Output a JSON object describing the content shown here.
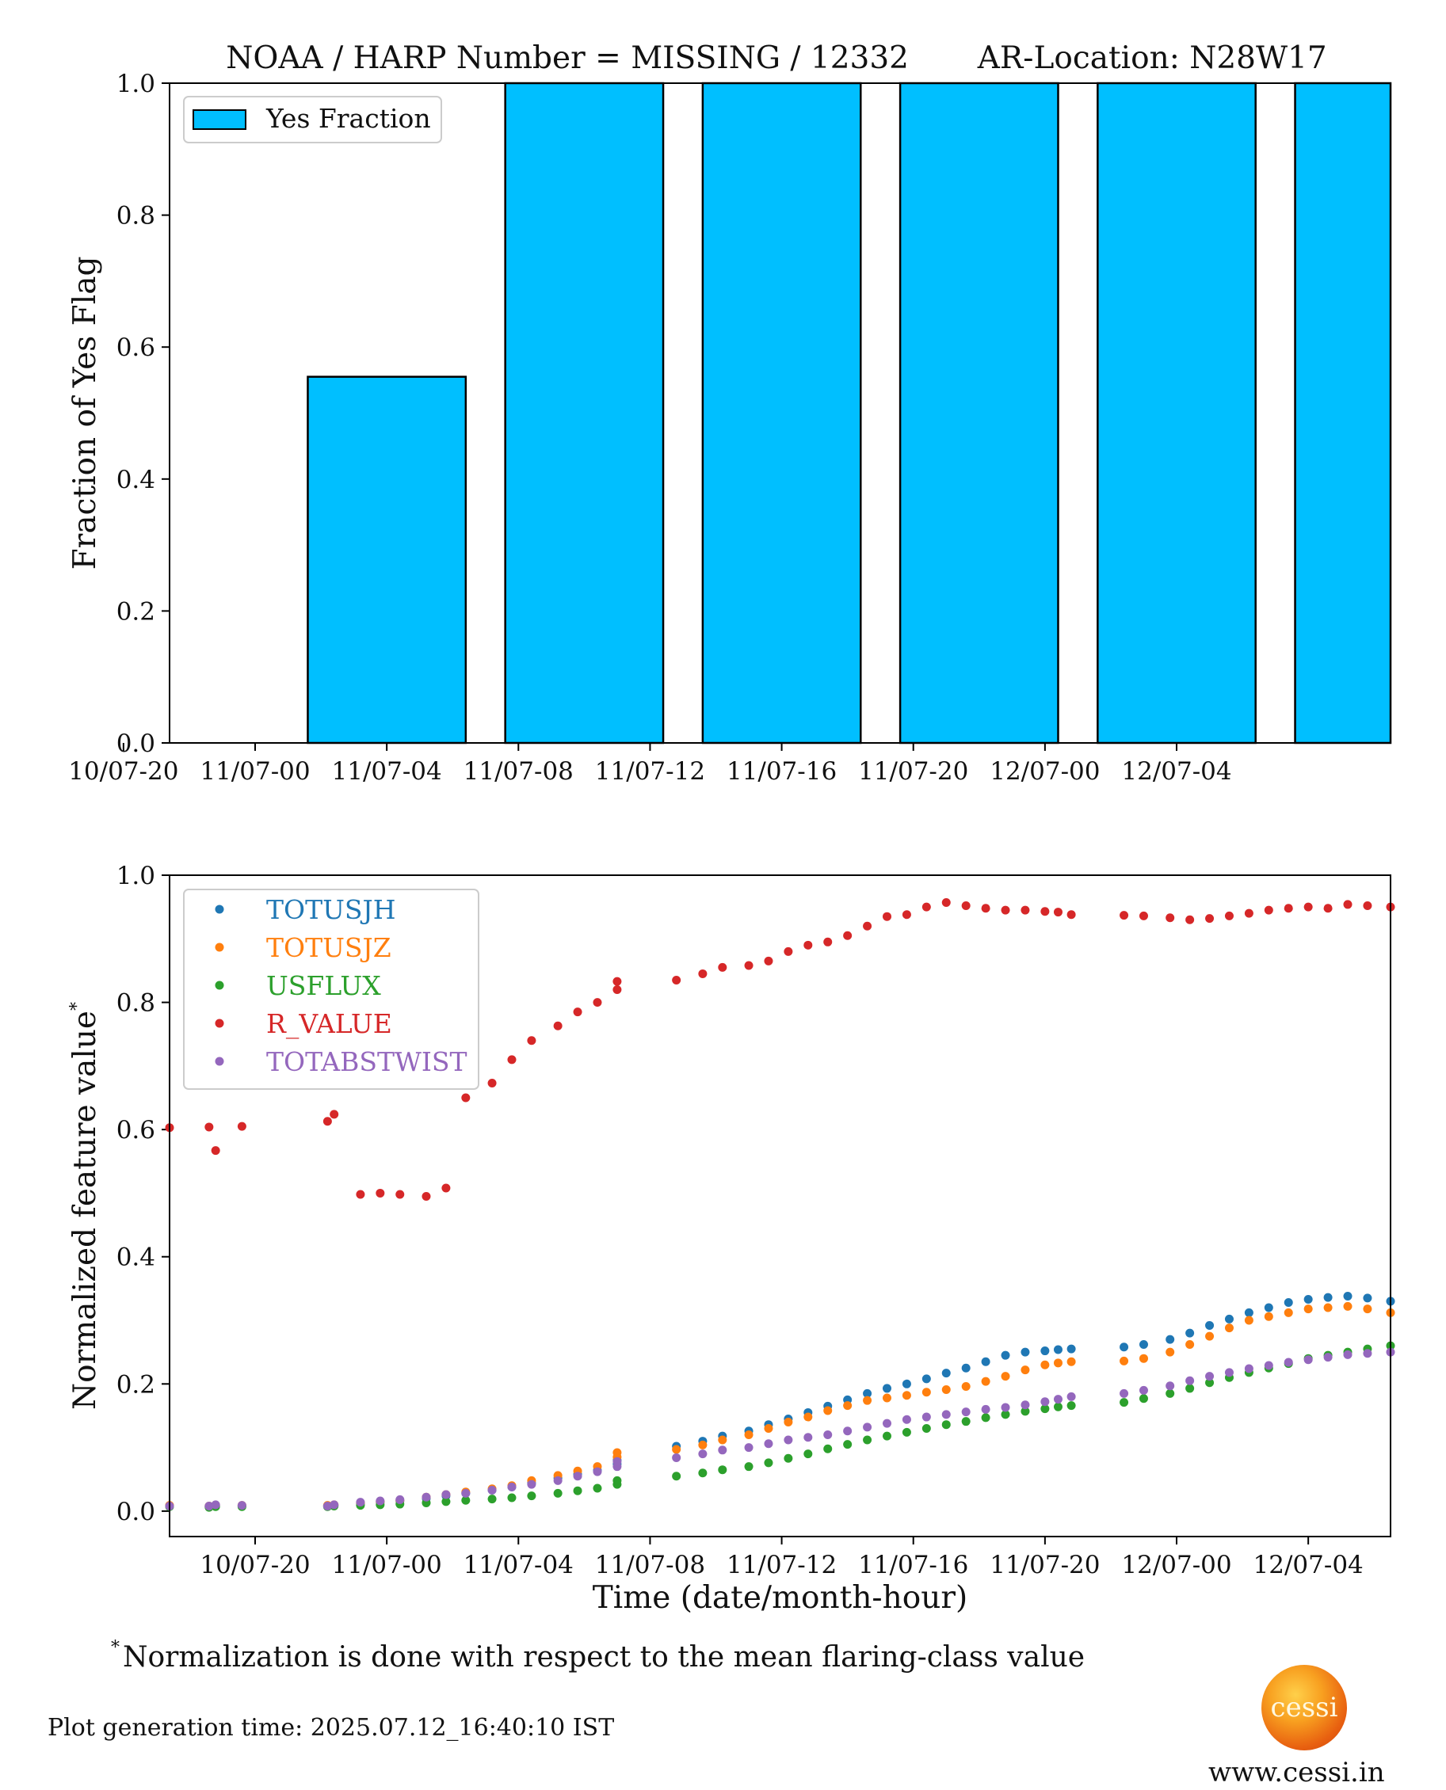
{
  "chart_data": [
    {
      "type": "bar",
      "title": "NOAA / HARP Number = MISSING / 12332       AR-Location: N28W17",
      "xlabel": "",
      "ylabel": "Fraction of Yes Flag",
      "ylim": [
        0,
        1.0
      ],
      "yticks": [
        "0.0",
        "0.2",
        "0.4",
        "0.6",
        "0.8",
        "1.0"
      ],
      "xticks": [
        "10/07-20",
        "11/07-00",
        "11/07-04",
        "11/07-08",
        "11/07-12",
        "11/07-16",
        "11/07-20",
        "12/07-00",
        "12/07-04"
      ],
      "x_range_hours": [
        -2.6,
        34.5
      ],
      "legend": {
        "placement": "top-left",
        "entries": [
          "Yes Fraction"
        ]
      },
      "bar_color": "#00bfff",
      "bars": [
        {
          "start_hour": 1.6,
          "end_hour": 6.4,
          "value": 0.555
        },
        {
          "start_hour": 7.6,
          "end_hour": 12.4,
          "value": 1.0
        },
        {
          "start_hour": 13.6,
          "end_hour": 18.4,
          "value": 1.0
        },
        {
          "start_hour": 19.6,
          "end_hour": 24.4,
          "value": 1.0
        },
        {
          "start_hour": 25.6,
          "end_hour": 30.4,
          "value": 1.0
        },
        {
          "start_hour": 31.6,
          "end_hour": 36.4,
          "value": 1.0
        }
      ]
    },
    {
      "type": "scatter",
      "title": "",
      "xlabel": "Time (date/month-hour)",
      "ylabel": "Normalized feature value",
      "ylabel_mark": "*",
      "ylim": [
        -0.04,
        1.0
      ],
      "yticks": [
        "0.0",
        "0.2",
        "0.4",
        "0.6",
        "0.8",
        "1.0"
      ],
      "xticks": [
        "10/07-20",
        "11/07-00",
        "11/07-04",
        "11/07-08",
        "11/07-12",
        "11/07-16",
        "11/07-20",
        "12/07-00",
        "12/07-04"
      ],
      "x_range_hours": [
        -6.6,
        30.5
      ],
      "grid": false,
      "legend": {
        "placement": "top-left"
      },
      "series": [
        {
          "name": "TOTUSJH",
          "color": "#1f77b4",
          "x": [
            -6.6,
            -5.4,
            -5.2,
            -4.4,
            -1.8,
            -1.6,
            -0.8,
            -0.2,
            0.4,
            1.2,
            1.8,
            2.4,
            3.2,
            3.8,
            4.4,
            5.2,
            5.8,
            6.4,
            7.0,
            7.0,
            8.8,
            9.6,
            10.2,
            11.0,
            11.6,
            12.2,
            12.8,
            13.4,
            14.0,
            14.6,
            15.2,
            15.8,
            16.4,
            17.0,
            17.6,
            18.2,
            18.8,
            19.4,
            20.0,
            20.4,
            20.8,
            22.4,
            23.0,
            23.8,
            24.4,
            25.0,
            25.6,
            26.2,
            26.8,
            27.4,
            28.0,
            28.6,
            29.2,
            29.8,
            30.5
          ],
          "y": [
            0.008,
            0.007,
            0.008,
            0.008,
            0.008,
            0.009,
            0.012,
            0.014,
            0.016,
            0.02,
            0.024,
            0.028,
            0.033,
            0.038,
            0.044,
            0.052,
            0.058,
            0.064,
            0.074,
            0.08,
            0.102,
            0.11,
            0.118,
            0.126,
            0.136,
            0.145,
            0.155,
            0.165,
            0.175,
            0.185,
            0.193,
            0.2,
            0.208,
            0.217,
            0.225,
            0.235,
            0.245,
            0.25,
            0.252,
            0.254,
            0.255,
            0.258,
            0.262,
            0.27,
            0.28,
            0.292,
            0.302,
            0.312,
            0.32,
            0.328,
            0.333,
            0.336,
            0.338,
            0.335,
            0.33
          ]
        },
        {
          "name": "TOTUSJZ",
          "color": "#ff7f0e",
          "x": [
            -6.6,
            -5.4,
            -5.2,
            -4.4,
            -1.8,
            -1.6,
            -0.8,
            -0.2,
            0.4,
            1.2,
            1.8,
            2.4,
            3.2,
            3.8,
            4.4,
            5.2,
            5.8,
            6.4,
            7.0,
            7.0,
            8.8,
            9.6,
            10.2,
            11.0,
            11.6,
            12.2,
            12.8,
            13.4,
            14.0,
            14.6,
            15.2,
            15.8,
            16.4,
            17.0,
            17.6,
            18.2,
            18.8,
            19.4,
            20.0,
            20.4,
            20.8,
            22.4,
            23.0,
            23.8,
            24.4,
            25.0,
            25.6,
            26.2,
            26.8,
            27.4,
            28.0,
            28.6,
            29.2,
            29.8,
            30.5
          ],
          "y": [
            0.009,
            0.008,
            0.009,
            0.009,
            0.009,
            0.01,
            0.013,
            0.015,
            0.017,
            0.022,
            0.026,
            0.03,
            0.035,
            0.04,
            0.048,
            0.056,
            0.063,
            0.07,
            0.085,
            0.092,
            0.097,
            0.104,
            0.112,
            0.12,
            0.13,
            0.14,
            0.148,
            0.158,
            0.166,
            0.174,
            0.178,
            0.182,
            0.187,
            0.191,
            0.196,
            0.204,
            0.212,
            0.222,
            0.23,
            0.233,
            0.235,
            0.236,
            0.24,
            0.25,
            0.262,
            0.275,
            0.288,
            0.3,
            0.306,
            0.312,
            0.318,
            0.32,
            0.322,
            0.318,
            0.312
          ]
        },
        {
          "name": "USFLUX",
          "color": "#2ca02c",
          "x": [
            -6.6,
            -5.4,
            -5.2,
            -4.4,
            -1.8,
            -1.6,
            -0.8,
            -0.2,
            0.4,
            1.2,
            1.8,
            2.4,
            3.2,
            3.8,
            4.4,
            5.2,
            5.8,
            6.4,
            7.0,
            7.0,
            8.8,
            9.6,
            10.2,
            11.0,
            11.6,
            12.2,
            12.8,
            13.4,
            14.0,
            14.6,
            15.2,
            15.8,
            16.4,
            17.0,
            17.6,
            18.2,
            18.8,
            19.4,
            20.0,
            20.4,
            20.8,
            22.4,
            23.0,
            23.8,
            24.4,
            25.0,
            25.6,
            26.2,
            26.8,
            27.4,
            28.0,
            28.6,
            29.2,
            29.8,
            30.5
          ],
          "y": [
            0.007,
            0.006,
            0.007,
            0.007,
            0.007,
            0.008,
            0.009,
            0.01,
            0.011,
            0.013,
            0.015,
            0.017,
            0.019,
            0.021,
            0.024,
            0.028,
            0.032,
            0.036,
            0.042,
            0.048,
            0.055,
            0.06,
            0.065,
            0.07,
            0.076,
            0.083,
            0.09,
            0.098,
            0.105,
            0.112,
            0.118,
            0.124,
            0.13,
            0.136,
            0.141,
            0.147,
            0.152,
            0.157,
            0.161,
            0.164,
            0.166,
            0.171,
            0.177,
            0.185,
            0.193,
            0.202,
            0.21,
            0.218,
            0.225,
            0.232,
            0.24,
            0.245,
            0.25,
            0.255,
            0.26
          ]
        },
        {
          "name": "R_VALUE",
          "color": "#d62728",
          "x": [
            -6.6,
            -5.4,
            -5.2,
            -4.4,
            -1.8,
            -1.6,
            -0.8,
            -0.2,
            0.4,
            1.2,
            1.8,
            2.4,
            3.2,
            3.8,
            4.4,
            5.2,
            5.8,
            6.4,
            7.0,
            7.0,
            8.8,
            9.6,
            10.2,
            11.0,
            11.6,
            12.2,
            12.8,
            13.4,
            14.0,
            14.6,
            15.2,
            15.8,
            16.4,
            17.0,
            17.6,
            18.2,
            18.8,
            19.4,
            20.0,
            20.4,
            20.8,
            22.4,
            23.0,
            23.8,
            24.4,
            25.0,
            25.6,
            26.2,
            26.8,
            27.4,
            28.0,
            28.6,
            29.2,
            29.8,
            30.5
          ],
          "y": [
            0.603,
            0.604,
            0.567,
            0.605,
            0.613,
            0.624,
            0.498,
            0.5,
            0.498,
            0.495,
            0.508,
            0.65,
            0.673,
            0.71,
            0.74,
            0.763,
            0.785,
            0.8,
            0.82,
            0.833,
            0.835,
            0.845,
            0.855,
            0.858,
            0.865,
            0.88,
            0.89,
            0.895,
            0.905,
            0.92,
            0.935,
            0.938,
            0.95,
            0.957,
            0.952,
            0.948,
            0.945,
            0.945,
            0.943,
            0.942,
            0.938,
            0.937,
            0.936,
            0.933,
            0.93,
            0.932,
            0.936,
            0.94,
            0.945,
            0.948,
            0.95,
            0.948,
            0.954,
            0.952,
            0.95
          ]
        },
        {
          "name": "TOTABSTWIST",
          "color": "#9467bd",
          "x": [
            -6.6,
            -5.4,
            -5.2,
            -4.4,
            -1.8,
            -1.6,
            -0.8,
            -0.2,
            0.4,
            1.2,
            1.8,
            2.4,
            3.2,
            3.8,
            4.4,
            5.2,
            5.8,
            6.4,
            7.0,
            7.0,
            8.8,
            9.6,
            10.2,
            11.0,
            11.6,
            12.2,
            12.8,
            13.4,
            14.0,
            14.6,
            15.2,
            15.8,
            16.4,
            17.0,
            17.6,
            18.2,
            18.8,
            19.4,
            20.0,
            20.4,
            20.8,
            22.4,
            23.0,
            23.8,
            24.4,
            25.0,
            25.6,
            26.2,
            26.8,
            27.4,
            28.0,
            28.6,
            29.2,
            29.8,
            30.5
          ],
          "y": [
            0.008,
            0.008,
            0.01,
            0.009,
            0.008,
            0.01,
            0.014,
            0.016,
            0.018,
            0.022,
            0.026,
            0.028,
            0.033,
            0.038,
            0.042,
            0.048,
            0.055,
            0.062,
            0.07,
            0.078,
            0.084,
            0.09,
            0.096,
            0.1,
            0.106,
            0.112,
            0.116,
            0.12,
            0.126,
            0.132,
            0.138,
            0.144,
            0.148,
            0.152,
            0.156,
            0.16,
            0.163,
            0.167,
            0.172,
            0.176,
            0.18,
            0.185,
            0.19,
            0.197,
            0.205,
            0.212,
            0.218,
            0.224,
            0.229,
            0.234,
            0.238,
            0.242,
            0.246,
            0.248,
            0.25
          ]
        }
      ]
    }
  ],
  "footnote": {
    "mark": "*",
    "text": "Normalization is done with respect to the mean flaring-class value"
  },
  "generation_time": "Plot generation time: 2025.07.12_16:40:10 IST",
  "logo_text": "cessi",
  "website": "www.cessi.in"
}
